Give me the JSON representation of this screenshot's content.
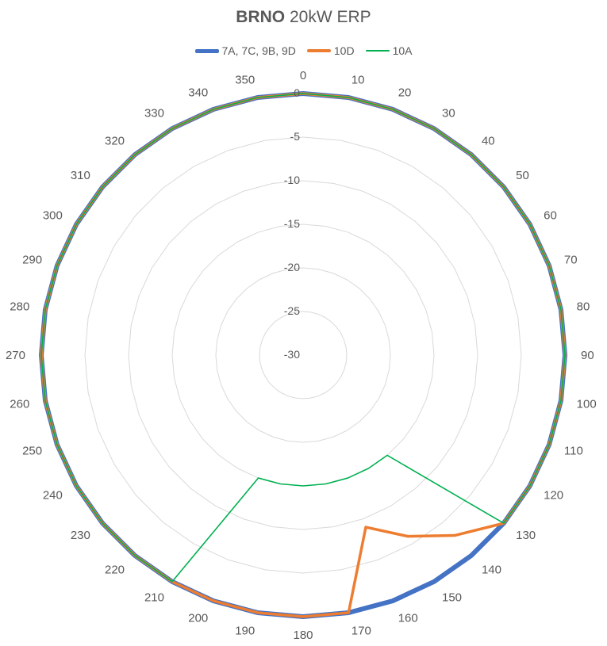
{
  "chart_data": {
    "type": "radar",
    "title_bold": "BRNO",
    "title_rest": "20kW ERP",
    "angles": [
      0,
      10,
      20,
      30,
      40,
      50,
      60,
      70,
      80,
      90,
      100,
      110,
      120,
      130,
      140,
      150,
      160,
      170,
      180,
      190,
      200,
      210,
      220,
      230,
      240,
      250,
      260,
      270,
      280,
      290,
      300,
      310,
      320,
      330,
      340,
      350
    ],
    "radial_ticks": [
      0,
      -5,
      -10,
      -15,
      -20,
      -25,
      -30
    ],
    "rlim": [
      -30,
      0
    ],
    "series": [
      {
        "name": "7A, 7C, 9B, 9D",
        "color": "#4472C4",
        "values": [
          0,
          0,
          0,
          0,
          0,
          0,
          0,
          0,
          0,
          0,
          0,
          0,
          0,
          0,
          0,
          0,
          0,
          0,
          0,
          0,
          0,
          0,
          0,
          0,
          0,
          0,
          0,
          0,
          0,
          0,
          0,
          0,
          0,
          0,
          0,
          0
        ]
      },
      {
        "name": "10D",
        "color": "#ED7D31",
        "values": [
          0,
          0,
          0,
          0,
          0,
          0,
          0,
          0,
          0,
          0,
          0,
          0,
          0,
          0,
          -3,
          -6,
          -9,
          0,
          0,
          0,
          0,
          0,
          0,
          0,
          0,
          0,
          0,
          0,
          0,
          0,
          0,
          0,
          0,
          0,
          0,
          0
        ]
      },
      {
        "name": "10A",
        "color": "#00B050",
        "values": [
          0,
          0,
          0,
          0,
          0,
          0,
          0,
          0,
          0,
          0,
          0,
          0,
          0,
          0,
          -15,
          -15,
          -15,
          -15,
          -15,
          -15,
          -15,
          0,
          0,
          0,
          0,
          0,
          0,
          0,
          0,
          0,
          0,
          0,
          0,
          0,
          0,
          0
        ]
      }
    ]
  }
}
